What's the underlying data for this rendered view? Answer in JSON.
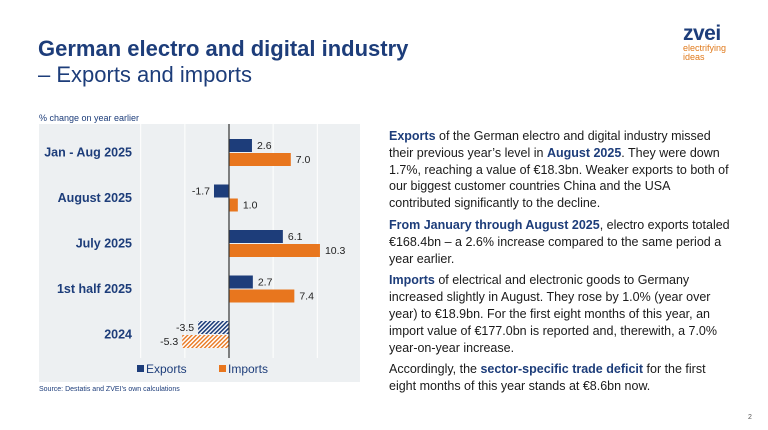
{
  "title": {
    "line1": "German electro and digital industry",
    "line2": "– Exports and imports"
  },
  "logo": {
    "name": "zvei",
    "tagline1": "electrifying",
    "tagline2": "ideas"
  },
  "colors": {
    "exports": "#1d3d7a",
    "imports": "#e8761e",
    "bg": "#edf0f2"
  },
  "chart_data": {
    "type": "bar",
    "orientation": "horizontal",
    "ylabel": "% change on year earlier",
    "categories": [
      "Jan - Aug 2025",
      "August 2025",
      "July 2025",
      "1st half 2025",
      "2024"
    ],
    "series": [
      {
        "name": "Exports",
        "values": [
          2.6,
          -1.7,
          6.1,
          2.7,
          -3.5
        ]
      },
      {
        "name": "Imports",
        "values": [
          7.0,
          1.0,
          10.3,
          7.4,
          -5.3
        ]
      }
    ],
    "hatched_categories": [
      "2024"
    ],
    "xlim": [
      -10,
      15
    ],
    "grid": true,
    "legend": "bottom",
    "source": "Source: Destatis and ZVEI’s own calculations"
  },
  "paragraphs": [
    [
      {
        "b": "Exports"
      },
      {
        "t": " of the German electro and digital industry missed their previous year’s level in "
      },
      {
        "b": "August 2025"
      },
      {
        "t": ". They were down 1.7%, reaching a value of €18.3bn. Weaker exports to both of our biggest customer countries China and the USA contributed significantly to the decline."
      }
    ],
    [
      {
        "b": "From January through August 2025"
      },
      {
        "t": ", electro exports totaled €168.4bn – a 2.6% increase compared to the same period a year earlier."
      }
    ],
    [
      {
        "b": "Imports"
      },
      {
        "t": " of electrical and electronic goods to Germany increased slightly in August. They rose by 1.0% (year over year) to €18.9bn. For the first eight months of this year, an import value of €177.0bn is reported and, therewith, a 7.0% year-on-year increase."
      }
    ],
    [
      {
        "t": "Accordingly, the "
      },
      {
        "b": "sector-specific trade deficit"
      },
      {
        "t": " for the first eight months of this year stands at €8.6bn now."
      }
    ]
  ],
  "page": "2"
}
